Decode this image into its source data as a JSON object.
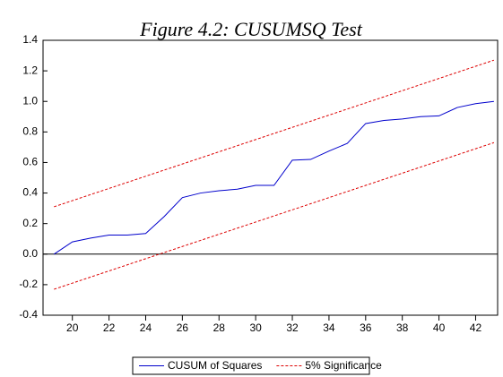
{
  "chart_data": {
    "type": "line",
    "title": "Figure 4.2: CUSUMSQ Test",
    "x": [
      19,
      20,
      21,
      22,
      23,
      24,
      25,
      26,
      27,
      28,
      29,
      30,
      31,
      32,
      33,
      34,
      35,
      36,
      37,
      38,
      39,
      40,
      41,
      42,
      43
    ],
    "series": [
      {
        "name": "CUSUM of Squares",
        "color": "#0000cc",
        "dash": "solid",
        "values": [
          0.0,
          0.08,
          0.105,
          0.125,
          0.125,
          0.135,
          0.245,
          0.37,
          0.4,
          0.415,
          0.425,
          0.45,
          0.45,
          0.615,
          0.62,
          0.675,
          0.725,
          0.855,
          0.875,
          0.885,
          0.9,
          0.905,
          0.96,
          0.985,
          1.0
        ]
      },
      {
        "name": "5% Significance",
        "color": "#dd0000",
        "dash": "dashed",
        "values": [
          0.31,
          0.35,
          0.39,
          0.43,
          0.47,
          0.51,
          0.55,
          0.59,
          0.63,
          0.67,
          0.71,
          0.75,
          0.79,
          0.83,
          0.87,
          0.91,
          0.95,
          0.99,
          1.03,
          1.07,
          1.11,
          1.15,
          1.19,
          1.23,
          1.27
        ]
      },
      {
        "color": "#dd0000",
        "dash": "dashed",
        "values": [
          -0.23,
          -0.19,
          -0.15,
          -0.11,
          -0.07,
          -0.03,
          0.01,
          0.05,
          0.09,
          0.13,
          0.17,
          0.21,
          0.25,
          0.29,
          0.33,
          0.37,
          0.41,
          0.45,
          0.49,
          0.53,
          0.57,
          0.61,
          0.65,
          0.69,
          0.73
        ]
      }
    ],
    "xlim": [
      18.4,
      43.2
    ],
    "xticks": [
      20,
      22,
      24,
      26,
      28,
      30,
      32,
      34,
      36,
      38,
      40,
      42
    ],
    "ylim": [
      -0.4,
      1.4
    ],
    "yticks": [
      -0.4,
      -0.2,
      {
        "value": 0,
        "label": "0.0"
      },
      0.2,
      0.4,
      0.6,
      0.8,
      {
        "value": 1,
        "label": "1.0"
      },
      1.2,
      1.4
    ],
    "zero_line": true
  }
}
